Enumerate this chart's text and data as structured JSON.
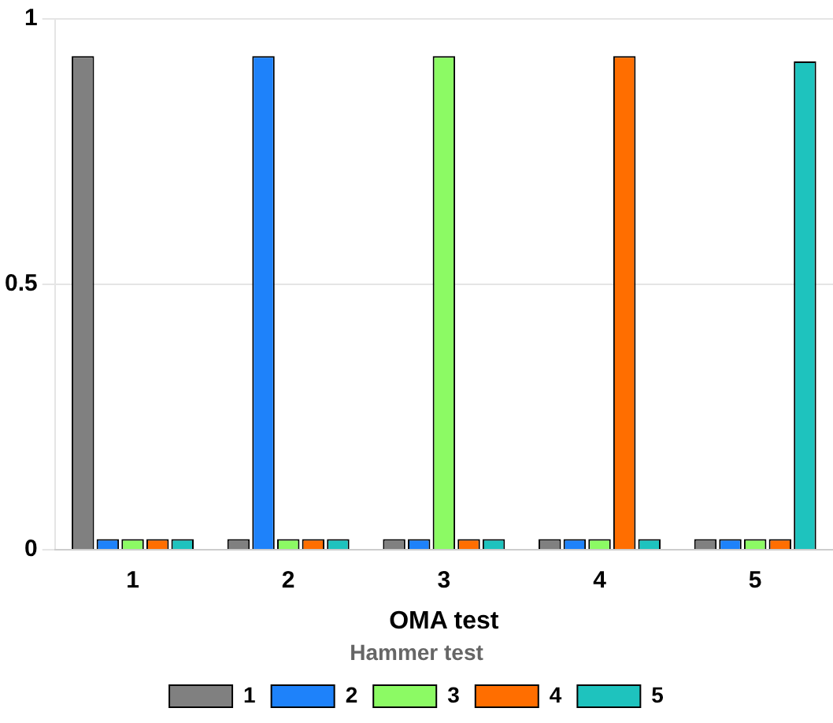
{
  "chart_data": {
    "type": "bar",
    "xlabel": "OMA test",
    "legend_title": "Hammer test",
    "categories": [
      "1",
      "2",
      "3",
      "4",
      "5"
    ],
    "series": [
      {
        "name": "1",
        "color": "#808080",
        "values": [
          0.93,
          0.02,
          0.02,
          0.02,
          0.02
        ]
      },
      {
        "name": "2",
        "color": "#1e82fa",
        "values": [
          0.02,
          0.93,
          0.02,
          0.02,
          0.02
        ]
      },
      {
        "name": "3",
        "color": "#8cfa64",
        "values": [
          0.02,
          0.02,
          0.93,
          0.02,
          0.02
        ]
      },
      {
        "name": "4",
        "color": "#ff6e00",
        "values": [
          0.02,
          0.02,
          0.02,
          0.93,
          0.02
        ]
      },
      {
        "name": "5",
        "color": "#1ec3be",
        "values": [
          0.02,
          0.02,
          0.02,
          0.02,
          0.92
        ]
      }
    ],
    "ylim": [
      0,
      1
    ],
    "yticks": [
      0,
      0.5,
      1
    ],
    "grid": "y",
    "legend": "bottom"
  }
}
